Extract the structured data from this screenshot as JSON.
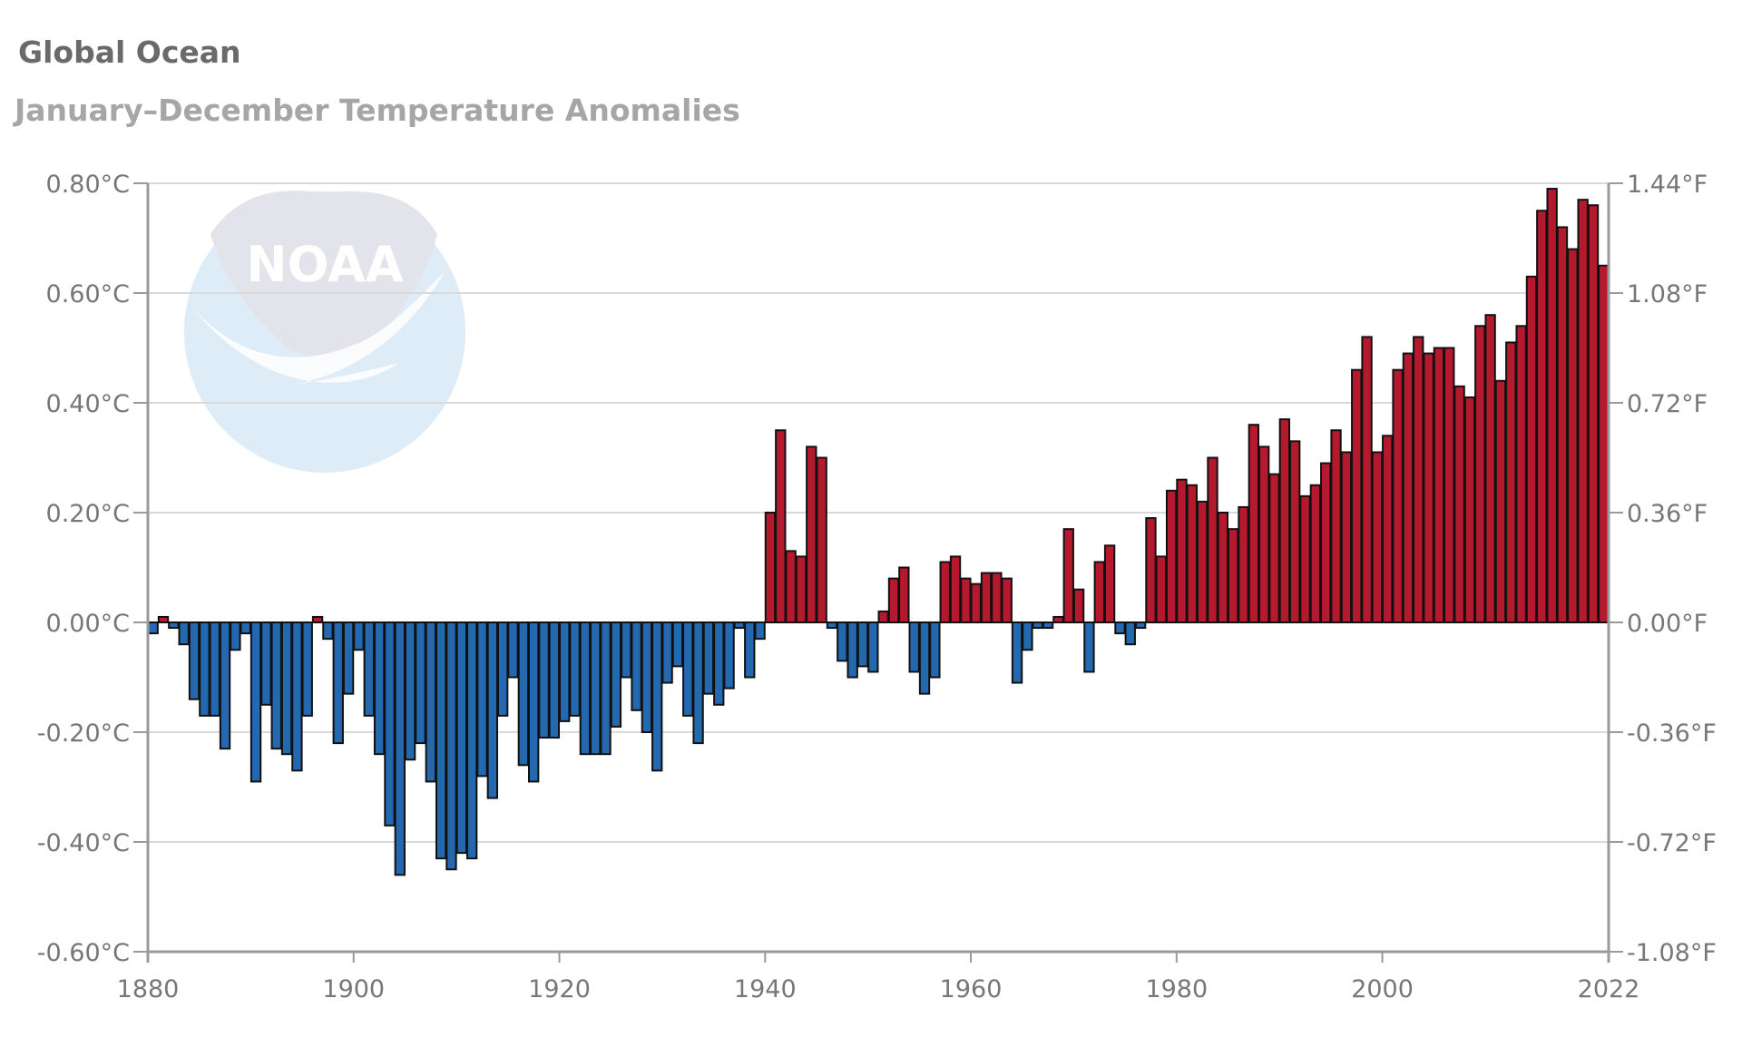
{
  "title": "Global Ocean",
  "subtitle": "January–December Temperature Anomalies",
  "colors": {
    "positive": "#b5192e",
    "negative": "#2468b0",
    "outline": "#111111",
    "grid": "#d9d9d9",
    "axis": "#9a9a9a",
    "watermark": "#dcebf7"
  },
  "watermark_icon": "noaa-logo",
  "watermark_text": "NOAA",
  "chart_data": {
    "type": "bar",
    "title": "Global Ocean",
    "subtitle": "January–December Temperature Anomalies",
    "xlabel": "",
    "ylabel": "",
    "xlim": [
      1880,
      2022
    ],
    "ylim": [
      -0.6,
      0.8
    ],
    "y2lim": [
      -1.08,
      1.44
    ],
    "grid": true,
    "legend": "none",
    "x_ticks": [
      "1880",
      "1900",
      "1920",
      "1940",
      "1960",
      "1980",
      "2000",
      "2022"
    ],
    "y_ticks_left": [
      "0.80°C",
      "0.60°C",
      "0.40°C",
      "0.20°C",
      "0.00°C",
      "-0.20°C",
      "-0.40°C",
      "-0.60°C"
    ],
    "y_ticks_right": [
      "1.44°F",
      "1.08°F",
      "0.72°F",
      "0.36°F",
      "0.00°F",
      "-0.36°F",
      "-0.72°F",
      "-1.08°F"
    ],
    "first_year": 1880,
    "values": [
      -0.02,
      0.01,
      -0.01,
      -0.04,
      -0.14,
      -0.17,
      -0.17,
      -0.23,
      -0.05,
      -0.02,
      -0.29,
      -0.15,
      -0.23,
      -0.24,
      -0.27,
      -0.17,
      0.01,
      -0.03,
      -0.22,
      -0.13,
      -0.05,
      -0.17,
      -0.24,
      -0.37,
      -0.46,
      -0.25,
      -0.22,
      -0.29,
      -0.43,
      -0.45,
      -0.42,
      -0.43,
      -0.28,
      -0.32,
      -0.17,
      -0.1,
      -0.26,
      -0.29,
      -0.21,
      -0.21,
      -0.18,
      -0.17,
      -0.24,
      -0.24,
      -0.24,
      -0.19,
      -0.1,
      -0.16,
      -0.2,
      -0.27,
      -0.11,
      -0.08,
      -0.17,
      -0.22,
      -0.13,
      -0.15,
      -0.12,
      -0.01,
      -0.1,
      -0.03,
      0.2,
      0.35,
      0.13,
      0.12,
      0.32,
      0.3,
      -0.01,
      -0.07,
      -0.1,
      -0.08,
      -0.09,
      0.02,
      0.08,
      0.1,
      -0.09,
      -0.13,
      -0.1,
      0.11,
      0.12,
      0.08,
      0.07,
      0.09,
      0.09,
      0.08,
      -0.11,
      -0.05,
      -0.01,
      -0.01,
      0.01,
      0.17,
      0.06,
      -0.09,
      0.11,
      0.14,
      -0.02,
      -0.04,
      -0.01,
      0.19,
      0.12,
      0.24,
      0.26,
      0.25,
      0.22,
      0.3,
      0.2,
      0.17,
      0.21,
      0.36,
      0.32,
      0.27,
      0.37,
      0.33,
      0.23,
      0.25,
      0.29,
      0.35,
      0.31,
      0.46,
      0.52,
      0.31,
      0.34,
      0.46,
      0.49,
      0.52,
      0.49,
      0.5,
      0.5,
      0.43,
      0.41,
      0.54,
      0.56,
      0.44,
      0.51,
      0.54,
      0.63,
      0.75,
      0.79,
      0.72,
      0.68,
      0.77,
      0.76,
      0.65
    ]
  }
}
